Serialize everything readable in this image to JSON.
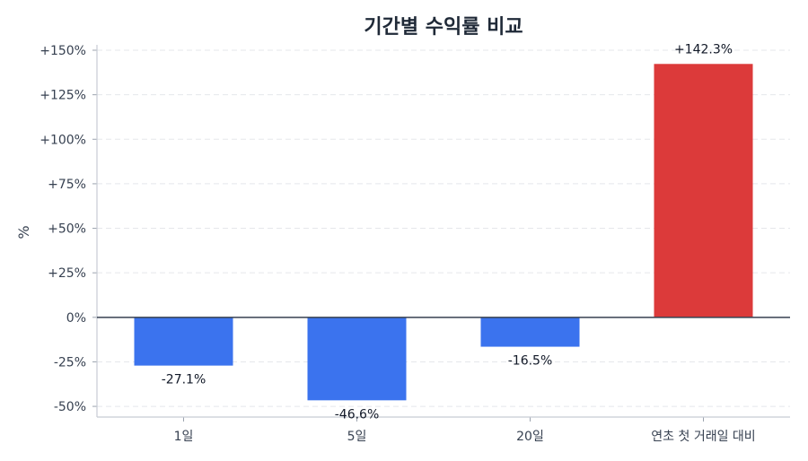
{
  "chart_data": {
    "type": "bar",
    "title": "기간별 수익률 비교",
    "xlabel": "",
    "ylabel": "%",
    "ylim": [
      -56,
      150
    ],
    "categories": [
      "1일",
      "5일",
      "20일",
      "연초 첫 거래일 대비"
    ],
    "values": [
      -27.1,
      -46.6,
      -16.5,
      142.3
    ],
    "data_labels": [
      "-27.1%",
      "-46.6%",
      "-16.5%",
      "+142.3%"
    ],
    "bar_colors": [
      "#3b73ee",
      "#3b73ee",
      "#3b73ee",
      "#dc3a3a"
    ],
    "yticks": [
      -50,
      -25,
      0,
      25,
      50,
      75,
      100,
      125,
      150
    ],
    "ytick_labels": [
      "-50%",
      "-25%",
      "0%",
      "+25%",
      "+50%",
      "+75%",
      "+100%",
      "+125%",
      "+150%"
    ],
    "grid": true,
    "grid_axis": "y",
    "legend": "none",
    "zero_line": true
  }
}
